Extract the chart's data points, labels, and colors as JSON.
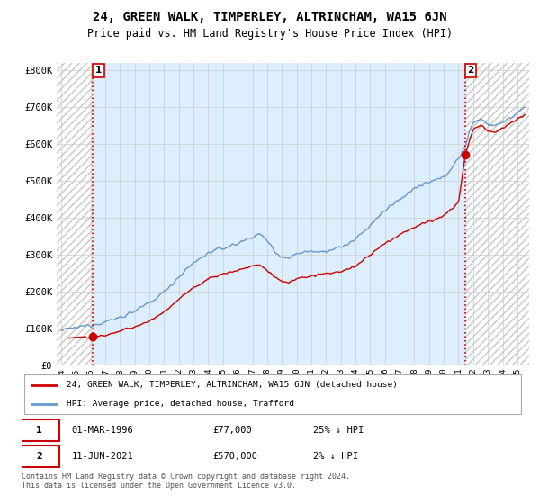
{
  "title": "24, GREEN WALK, TIMPERLEY, ALTRINCHAM, WA15 6JN",
  "subtitle": "Price paid vs. HM Land Registry's House Price Index (HPI)",
  "ylabel_ticks": [
    "£0",
    "£100K",
    "£200K",
    "£300K",
    "£400K",
    "£500K",
    "£600K",
    "£700K",
    "£800K"
  ],
  "ytick_values": [
    0,
    100000,
    200000,
    300000,
    400000,
    500000,
    600000,
    700000,
    800000
  ],
  "ylim": [
    0,
    820000
  ],
  "xlim_start": 1993.7,
  "xlim_end": 2025.8,
  "sale1": {
    "date_num": 1996.17,
    "price": 77000,
    "label": "1",
    "date_str": "01-MAR-1996",
    "pct_str": "25% ↓ HPI",
    "price_str": "£77,000"
  },
  "sale2": {
    "date_num": 2021.44,
    "price": 570000,
    "label": "2",
    "date_str": "11-JUN-2021",
    "pct_str": "2% ↓ HPI",
    "price_str": "£570,000"
  },
  "legend_sale_label": "24, GREEN WALK, TIMPERLEY, ALTRINCHAM, WA15 6JN (detached house)",
  "legend_hpi_label": "HPI: Average price, detached house, Trafford",
  "footer": "Contains HM Land Registry data © Crown copyright and database right 2024.\nThis data is licensed under the Open Government Licence v3.0.",
  "sale_color": "#cc0000",
  "hpi_color": "#6699cc",
  "bg_color": "#ddeeff",
  "grid_color": "#cccccc",
  "dashed_line_color": "#cc0000",
  "title_fontsize": 10,
  "subtitle_fontsize": 8.5
}
